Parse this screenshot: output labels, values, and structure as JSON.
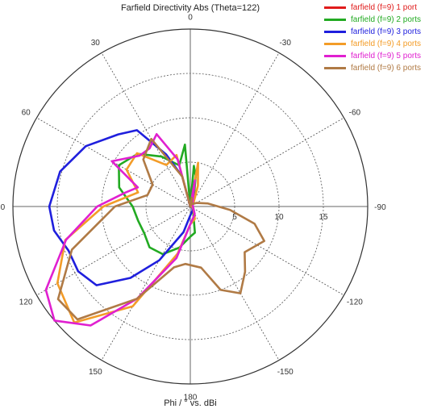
{
  "chart_data": {
    "type": "polar-line",
    "title": "Farfield Directivity Abs (Theta=122)",
    "xlabel": "Phi / ° vs. dBi",
    "angle_ticks": [
      {
        "angle": 0,
        "label": "0"
      },
      {
        "angle": 30,
        "label": "-30"
      },
      {
        "angle": 60,
        "label": "-60"
      },
      {
        "angle": 90,
        "label": "-90"
      },
      {
        "angle": 120,
        "label": "-120"
      },
      {
        "angle": 150,
        "label": "-150"
      },
      {
        "angle": 180,
        "label": "180"
      },
      {
        "angle": -150,
        "label": "150"
      },
      {
        "angle": -120,
        "label": "120"
      },
      {
        "angle": -90,
        "label": "90"
      },
      {
        "angle": -60,
        "label": "60"
      },
      {
        "angle": -30,
        "label": "30"
      }
    ],
    "radial_ticks": [
      "5",
      "10",
      "15"
    ],
    "rlim": [
      0,
      20
    ],
    "grid": true,
    "legend_position": "top-right",
    "series": [
      {
        "name": "farfield (f=9) 1 port",
        "color": "#e01b1b",
        "points": []
      },
      {
        "name": "farfield (f=9) 2 ports",
        "color": "#22aa22",
        "points": [
          [
            0,
            0
          ],
          [
            -5,
            7.0
          ],
          [
            -15,
            4.8
          ],
          [
            -30,
            6.5
          ],
          [
            -45,
            8.4
          ],
          [
            -60,
            9.3
          ],
          [
            -75,
            8.3
          ],
          [
            -90,
            6.5
          ],
          [
            -105,
            6.1
          ],
          [
            -120,
            6.0
          ],
          [
            -135,
            6.5
          ],
          [
            -150,
            6.2
          ],
          [
            -165,
            4.8
          ],
          [
            -180,
            3.4
          ],
          [
            180,
            3.4
          ],
          [
            170,
            3.0
          ],
          [
            160,
            1.0
          ],
          [
            135,
            0.5
          ],
          [
            90,
            0.2
          ],
          [
            45,
            0.3
          ],
          [
            20,
            1.2
          ],
          [
            10,
            3.5
          ],
          [
            5,
            4.6
          ]
        ]
      },
      {
        "name": "farfield (f=9) 3 ports",
        "color": "#1f1fdd",
        "points": [
          [
            0,
            0
          ],
          [
            -15,
            3.5
          ],
          [
            -25,
            6.5
          ],
          [
            -35,
            10.5
          ],
          [
            -45,
            11.5
          ],
          [
            -60,
            13.6
          ],
          [
            -75,
            15.2
          ],
          [
            -90,
            15.9
          ],
          [
            -100,
            15.6
          ],
          [
            -110,
            14.6
          ],
          [
            -120,
            14.6
          ],
          [
            -130,
            13.8
          ],
          [
            -140,
            10.5
          ],
          [
            -150,
            7.0
          ],
          [
            -165,
            3.0
          ],
          [
            -180,
            1.0
          ],
          [
            180,
            1.0
          ],
          [
            150,
            0.5
          ],
          [
            90,
            0.2
          ],
          [
            45,
            0.3
          ],
          [
            10,
            1.0
          ]
        ]
      },
      {
        "name": "farfield (f=9) 4 ports",
        "color": "#f39c28",
        "points": [
          [
            0,
            0
          ],
          [
            -15,
            6.0
          ],
          [
            -30,
            5.4
          ],
          [
            -45,
            8.5
          ],
          [
            -60,
            8.3
          ],
          [
            -75,
            6.1
          ],
          [
            -90,
            9.8
          ],
          [
            -105,
            14.6
          ],
          [
            -120,
            17.3
          ],
          [
            -135,
            18.5
          ],
          [
            -150,
            13.0
          ],
          [
            -165,
            5.5
          ],
          [
            -180,
            2.0
          ],
          [
            180,
            2.0
          ],
          [
            160,
            1.5
          ],
          [
            135,
            0.5
          ],
          [
            90,
            0.2
          ],
          [
            45,
            0.5
          ],
          [
            20,
            2.5
          ],
          [
            10,
            5.0
          ]
        ]
      },
      {
        "name": "farfield (f=9) 5 ports",
        "color": "#e020d0",
        "points": [
          [
            0,
            0
          ],
          [
            -15,
            5.5
          ],
          [
            -25,
            9.0
          ],
          [
            -35,
            8.0
          ],
          [
            -45,
            8.1
          ],
          [
            -60,
            10.2
          ],
          [
            -70,
            6.3
          ],
          [
            -78,
            7.5
          ],
          [
            -90,
            10.5
          ],
          [
            -105,
            14.5
          ],
          [
            -120,
            18.8
          ],
          [
            -130,
            20.0
          ],
          [
            -140,
            17.5
          ],
          [
            -150,
            12.0
          ],
          [
            -165,
            6.0
          ],
          [
            -180,
            2.0
          ],
          [
            180,
            2.0
          ],
          [
            150,
            1.0
          ],
          [
            90,
            0.3
          ],
          [
            30,
            0.5
          ],
          [
            10,
            3.0
          ]
        ]
      },
      {
        "name": "farfield (f=9) 6 ports",
        "color": "#b07a45",
        "points": [
          [
            0,
            0
          ],
          [
            -15,
            3.5
          ],
          [
            -30,
            8.8
          ],
          [
            -45,
            7.5
          ],
          [
            -60,
            4.9
          ],
          [
            -75,
            5.0
          ],
          [
            -90,
            8.5
          ],
          [
            -110,
            14.2
          ],
          [
            -125,
            18.2
          ],
          [
            -135,
            18.0
          ],
          [
            -150,
            12.0
          ],
          [
            -165,
            7.1
          ],
          [
            -175,
            6.5
          ],
          [
            170,
            7.0
          ],
          [
            160,
            10.0
          ],
          [
            150,
            11.3
          ],
          [
            140,
            9.6
          ],
          [
            130,
            8.0
          ],
          [
            115,
            9.2
          ],
          [
            105,
            7.5
          ],
          [
            95,
            4.5
          ],
          [
            80,
            2.0
          ],
          [
            60,
            0.8
          ],
          [
            30,
            0.3
          ],
          [
            10,
            1.0
          ]
        ]
      }
    ]
  }
}
